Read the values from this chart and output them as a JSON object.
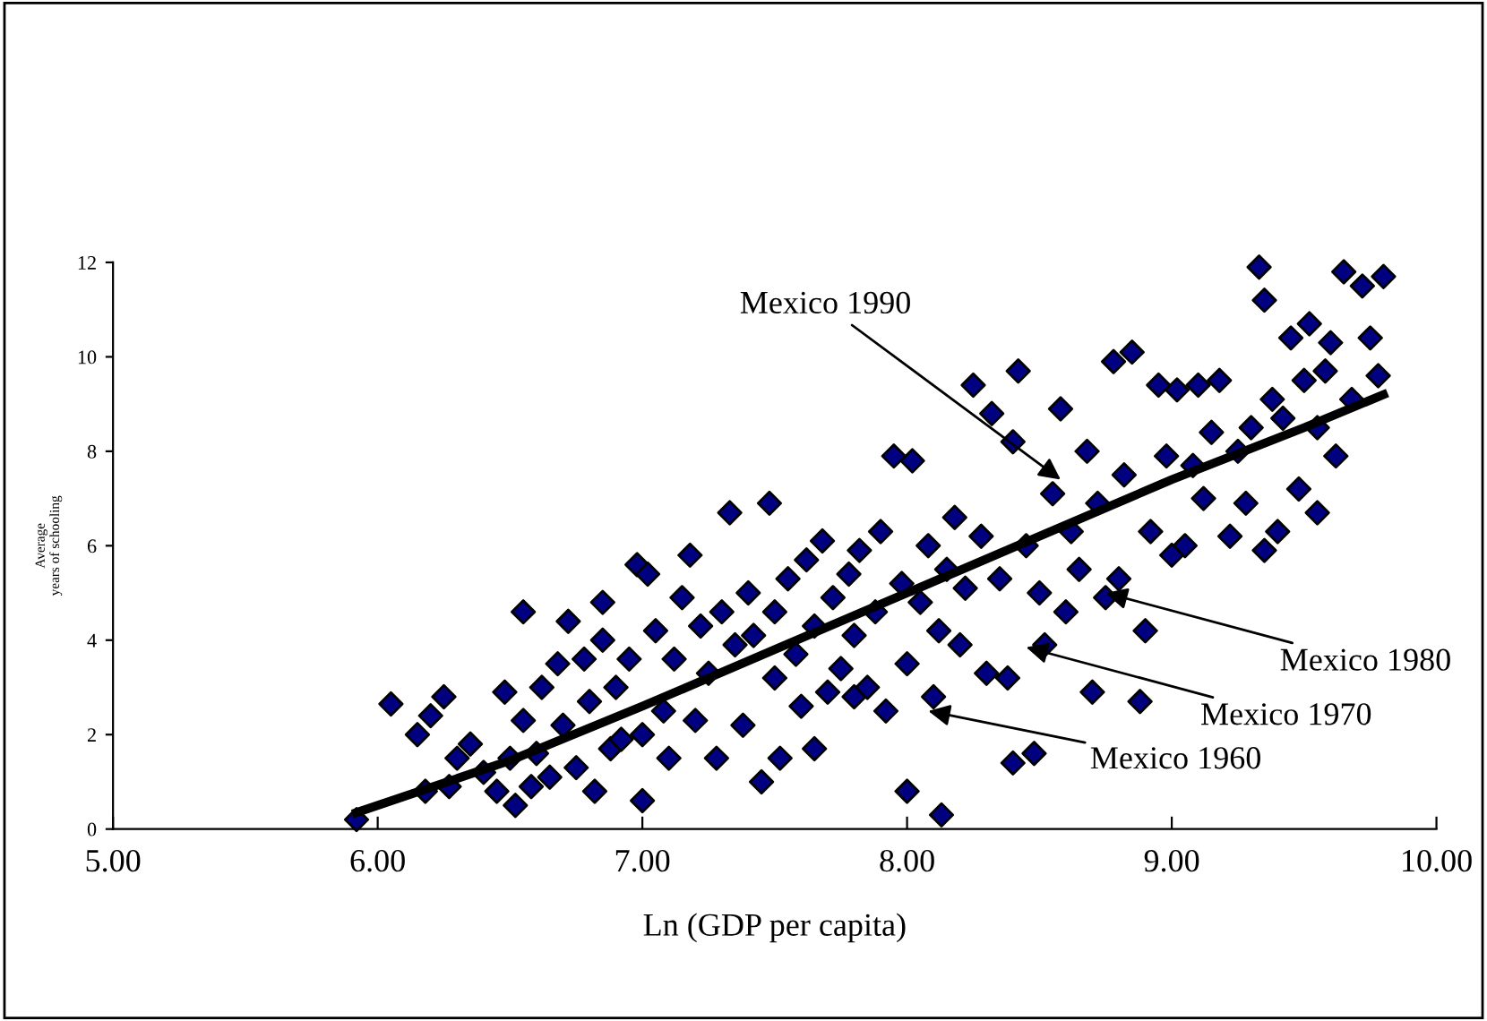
{
  "chart_data": {
    "type": "scatter",
    "xlabel": "Ln (GDP per capita)",
    "ylabel": "Average\nyears of schooling",
    "xlim": [
      5,
      10
    ],
    "ylim": [
      0,
      12
    ],
    "xticks": [
      {
        "value": 5,
        "label": "5.00"
      },
      {
        "value": 6,
        "label": "6.00"
      },
      {
        "value": 7,
        "label": "7.00"
      },
      {
        "value": 8,
        "label": "8.00"
      },
      {
        "value": 9,
        "label": "9.00"
      },
      {
        "value": 10,
        "label": "10.00"
      }
    ],
    "yticks": [
      0,
      2,
      4,
      6,
      8,
      10,
      12
    ],
    "grid": false,
    "legend": false,
    "series": [
      {
        "color": "#000080",
        "marker": "diamond",
        "x": [
          5.92,
          6.05,
          6.15,
          6.18,
          6.2,
          6.25,
          6.27,
          6.3,
          6.35,
          6.4,
          6.45,
          6.48,
          6.5,
          6.52,
          6.55,
          6.55,
          6.58,
          6.6,
          6.62,
          6.65,
          6.68,
          6.7,
          6.72,
          6.75,
          6.78,
          6.8,
          6.82,
          6.85,
          6.85,
          6.88,
          6.9,
          6.92,
          6.95,
          6.98,
          7.0,
          7.0,
          7.02,
          7.05,
          7.08,
          7.1,
          7.12,
          7.15,
          7.18,
          7.2,
          7.22,
          7.25,
          7.28,
          7.3,
          7.33,
          7.35,
          7.38,
          7.4,
          7.42,
          7.45,
          7.48,
          7.5,
          7.5,
          7.52,
          7.55,
          7.58,
          7.6,
          7.62,
          7.65,
          7.65,
          7.68,
          7.7,
          7.72,
          7.75,
          7.78,
          7.8,
          7.8,
          7.82,
          7.85,
          7.88,
          7.9,
          7.92,
          7.95,
          7.98,
          8.0,
          8.0,
          8.02,
          8.05,
          8.08,
          8.1,
          8.12,
          8.13,
          8.15,
          8.18,
          8.2,
          8.22,
          8.25,
          8.28,
          8.3,
          8.32,
          8.35,
          8.38,
          8.4,
          8.4,
          8.42,
          8.45,
          8.48,
          8.5,
          8.52,
          8.55,
          8.58,
          8.6,
          8.62,
          8.65,
          8.68,
          8.7,
          8.72,
          8.75,
          8.78,
          8.8,
          8.82,
          8.85,
          8.88,
          8.9,
          8.92,
          8.95,
          8.98,
          9.0,
          9.02,
          9.05,
          9.08,
          9.1,
          9.12,
          9.15,
          9.18,
          9.22,
          9.25,
          9.28,
          9.3,
          9.33,
          9.35,
          9.35,
          9.38,
          9.4,
          9.42,
          9.45,
          9.48,
          9.5,
          9.52,
          9.55,
          9.55,
          9.58,
          9.6,
          9.62,
          9.65,
          9.68,
          9.72,
          9.75,
          9.8,
          9.78
        ],
        "values": [
          0.2,
          2.65,
          2.0,
          0.8,
          2.4,
          2.8,
          0.9,
          1.5,
          1.8,
          1.2,
          0.8,
          2.9,
          1.5,
          0.5,
          4.6,
          2.3,
          0.9,
          1.6,
          3.0,
          1.1,
          3.5,
          2.2,
          4.4,
          1.3,
          3.6,
          2.7,
          0.8,
          4.8,
          4.0,
          1.7,
          3.0,
          1.9,
          3.6,
          5.6,
          0.6,
          2.0,
          5.4,
          4.2,
          2.5,
          1.5,
          3.6,
          4.9,
          5.8,
          2.3,
          4.3,
          3.3,
          1.5,
          4.6,
          6.7,
          3.9,
          2.2,
          5.0,
          4.1,
          1.0,
          6.9,
          3.2,
          4.6,
          1.5,
          5.3,
          3.7,
          2.6,
          5.7,
          1.7,
          4.3,
          6.1,
          2.9,
          4.9,
          3.4,
          5.4,
          2.8,
          4.1,
          5.9,
          3.0,
          4.6,
          6.3,
          2.5,
          7.9,
          5.2,
          3.5,
          0.8,
          7.8,
          4.8,
          6.0,
          2.8,
          4.2,
          0.3,
          5.5,
          6.6,
          3.9,
          5.1,
          9.4,
          6.2,
          3.3,
          8.8,
          5.3,
          3.2,
          8.2,
          1.4,
          9.7,
          6.0,
          1.6,
          5.0,
          3.9,
          7.1,
          8.9,
          4.6,
          6.3,
          5.5,
          8.0,
          2.9,
          6.9,
          4.9,
          9.9,
          5.3,
          7.5,
          10.1,
          2.7,
          4.2,
          6.3,
          9.4,
          7.9,
          5.8,
          9.3,
          6.0,
          7.7,
          9.4,
          7.0,
          8.4,
          9.5,
          6.2,
          8.0,
          6.9,
          8.5,
          11.9,
          11.2,
          5.9,
          9.1,
          6.3,
          8.7,
          10.4,
          7.2,
          9.5,
          10.7,
          6.7,
          8.5,
          9.7,
          10.3,
          7.9,
          11.8,
          9.1,
          11.5,
          10.4,
          11.7,
          9.6
        ]
      },
      {
        "type": "line",
        "color": "#000000",
        "marker": "none",
        "line_style": "solid",
        "x": [
          5.92,
          6.5,
          7.0,
          7.5,
          8.0,
          8.5,
          9.0,
          9.5,
          9.8
        ],
        "values": [
          0.35,
          1.45,
          2.6,
          3.8,
          5.0,
          6.2,
          7.4,
          8.5,
          9.2
        ]
      }
    ],
    "annotations": [
      {
        "text": "Mexico 1990",
        "x": 8.58,
        "y": 7.4
      },
      {
        "text": "Mexico 1980",
        "x": 8.75,
        "y": 5.0
      },
      {
        "text": "Mexico 1970",
        "x": 8.45,
        "y": 3.85
      },
      {
        "text": "Mexico 1960",
        "x": 8.08,
        "y": 2.5
      }
    ]
  }
}
